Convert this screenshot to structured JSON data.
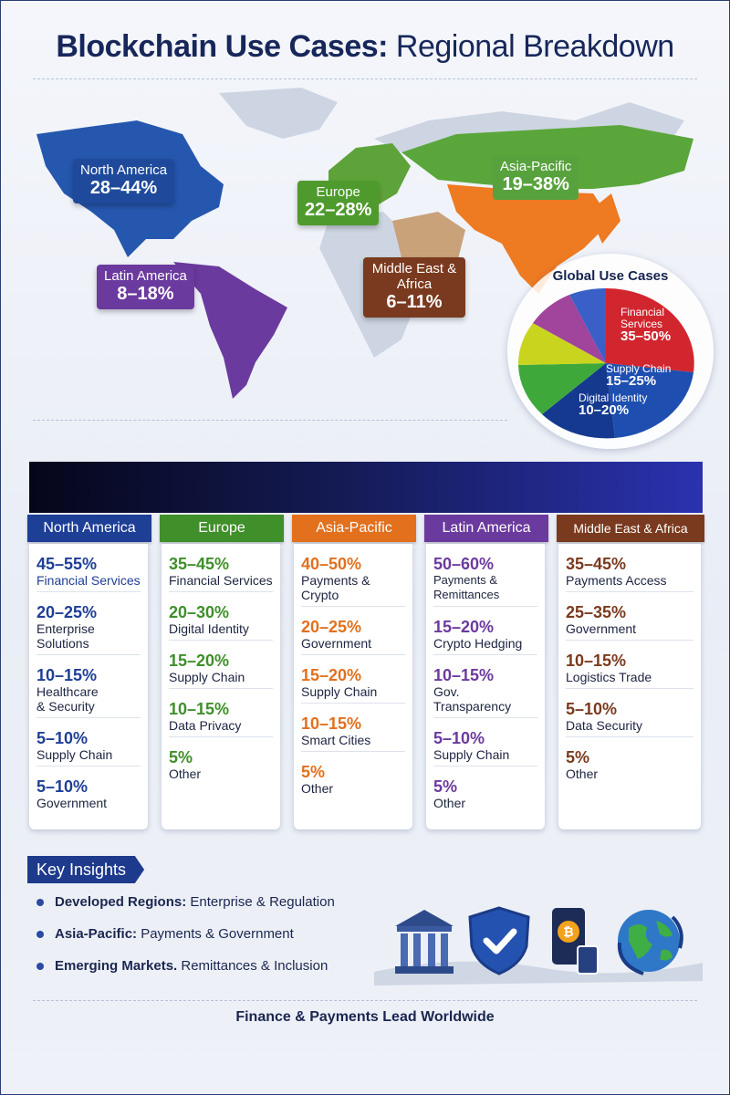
{
  "title": {
    "bold": "Blockchain Use Cases:",
    "rest": " Regional Breakdown"
  },
  "map": {
    "regions": [
      {
        "name": "North America",
        "range": "28–44%",
        "color": "#1f4a9c"
      },
      {
        "name": "Europe",
        "range": "22–28%",
        "color": "#4f9a2d"
      },
      {
        "name": "Asia-Pacific",
        "range": "19–38%",
        "color": "#58a23d"
      },
      {
        "name": "Latin America",
        "range": "8–18%",
        "color": "#6b3a9e"
      },
      {
        "name": "Middle East & Africa",
        "range": "6–11%",
        "color": "#7a3a1f"
      }
    ]
  },
  "global": {
    "title": "Global Use Cases",
    "slices": [
      {
        "name": "Financial Services",
        "range": "35–50%",
        "color": "#d2262f"
      },
      {
        "name": "Supply Chain",
        "range": "15–25%",
        "color": "#1e4fb0"
      },
      {
        "name": "Digital Identity",
        "range": "10–20%",
        "color": "#1a3f9a"
      }
    ]
  },
  "table": {
    "columns": [
      {
        "region": "North America",
        "color": "#1e3f96",
        "rows": [
          {
            "pct": "45–55%",
            "label": "Financial Services"
          },
          {
            "pct": "20–25%",
            "label": "Enterprise Solutions"
          },
          {
            "pct": "10–15%",
            "label": "Healthcare & Security"
          },
          {
            "pct": "5–10%",
            "label": "Supply Chain"
          },
          {
            "pct": "5–10%",
            "label": "Government"
          }
        ]
      },
      {
        "region": "Europe",
        "color": "#3f8f2a",
        "rows": [
          {
            "pct": "35–45%",
            "label": "Financial Services"
          },
          {
            "pct": "20–30%",
            "label": "Digital Identity"
          },
          {
            "pct": "15–20%",
            "label": "Supply Chain"
          },
          {
            "pct": "10–15%",
            "label": "Data Privacy"
          },
          {
            "pct": "5%",
            "label": "Other"
          }
        ]
      },
      {
        "region": "Asia-Pacific",
        "color": "#e2701d",
        "rows": [
          {
            "pct": "40–50%",
            "label": "Payments & Crypto"
          },
          {
            "pct": "20–25%",
            "label": "Government"
          },
          {
            "pct": "15–20%",
            "label": "Supply Chain"
          },
          {
            "pct": "10–15%",
            "label": "Smart Cities"
          },
          {
            "pct": "5%",
            "label": "Other"
          }
        ]
      },
      {
        "region": "Latin America",
        "color": "#6b3a9e",
        "rows": [
          {
            "pct": "50–60%",
            "label": "Payments & Remittances"
          },
          {
            "pct": "15–20%",
            "label": "Crypto Hedging"
          },
          {
            "pct": "10–15%",
            "label": "Gov. Transparency"
          },
          {
            "pct": "5–10%",
            "label": "Supply Chain"
          },
          {
            "pct": "5%",
            "label": "Other"
          }
        ]
      },
      {
        "region": "Middle East & Africa",
        "color": "#7a3a1f",
        "rows": [
          {
            "pct": "35–45%",
            "label": "Payments Access"
          },
          {
            "pct": "25–35%",
            "label": "Government"
          },
          {
            "pct": "10–15%",
            "label": "Logistics Trade"
          },
          {
            "pct": "5–10%",
            "label": "Data Security"
          },
          {
            "pct": "5%",
            "label": "Other"
          }
        ]
      }
    ]
  },
  "insights": {
    "title": "Key Insights",
    "items": [
      {
        "bold": "Developed Regions:",
        "text": " Enterprise & Regulation"
      },
      {
        "bold": "Asia-Pacific:",
        "text": " Payments & Government"
      },
      {
        "bold": "Emerging Markets.",
        "text": " Remittances & Inclusion"
      }
    ],
    "icons": [
      "bank-icon",
      "shield-check-icon",
      "mobile-bitcoin-icon",
      "globe-icon"
    ]
  },
  "footer": "Finance & Payments Lead Worldwide"
}
